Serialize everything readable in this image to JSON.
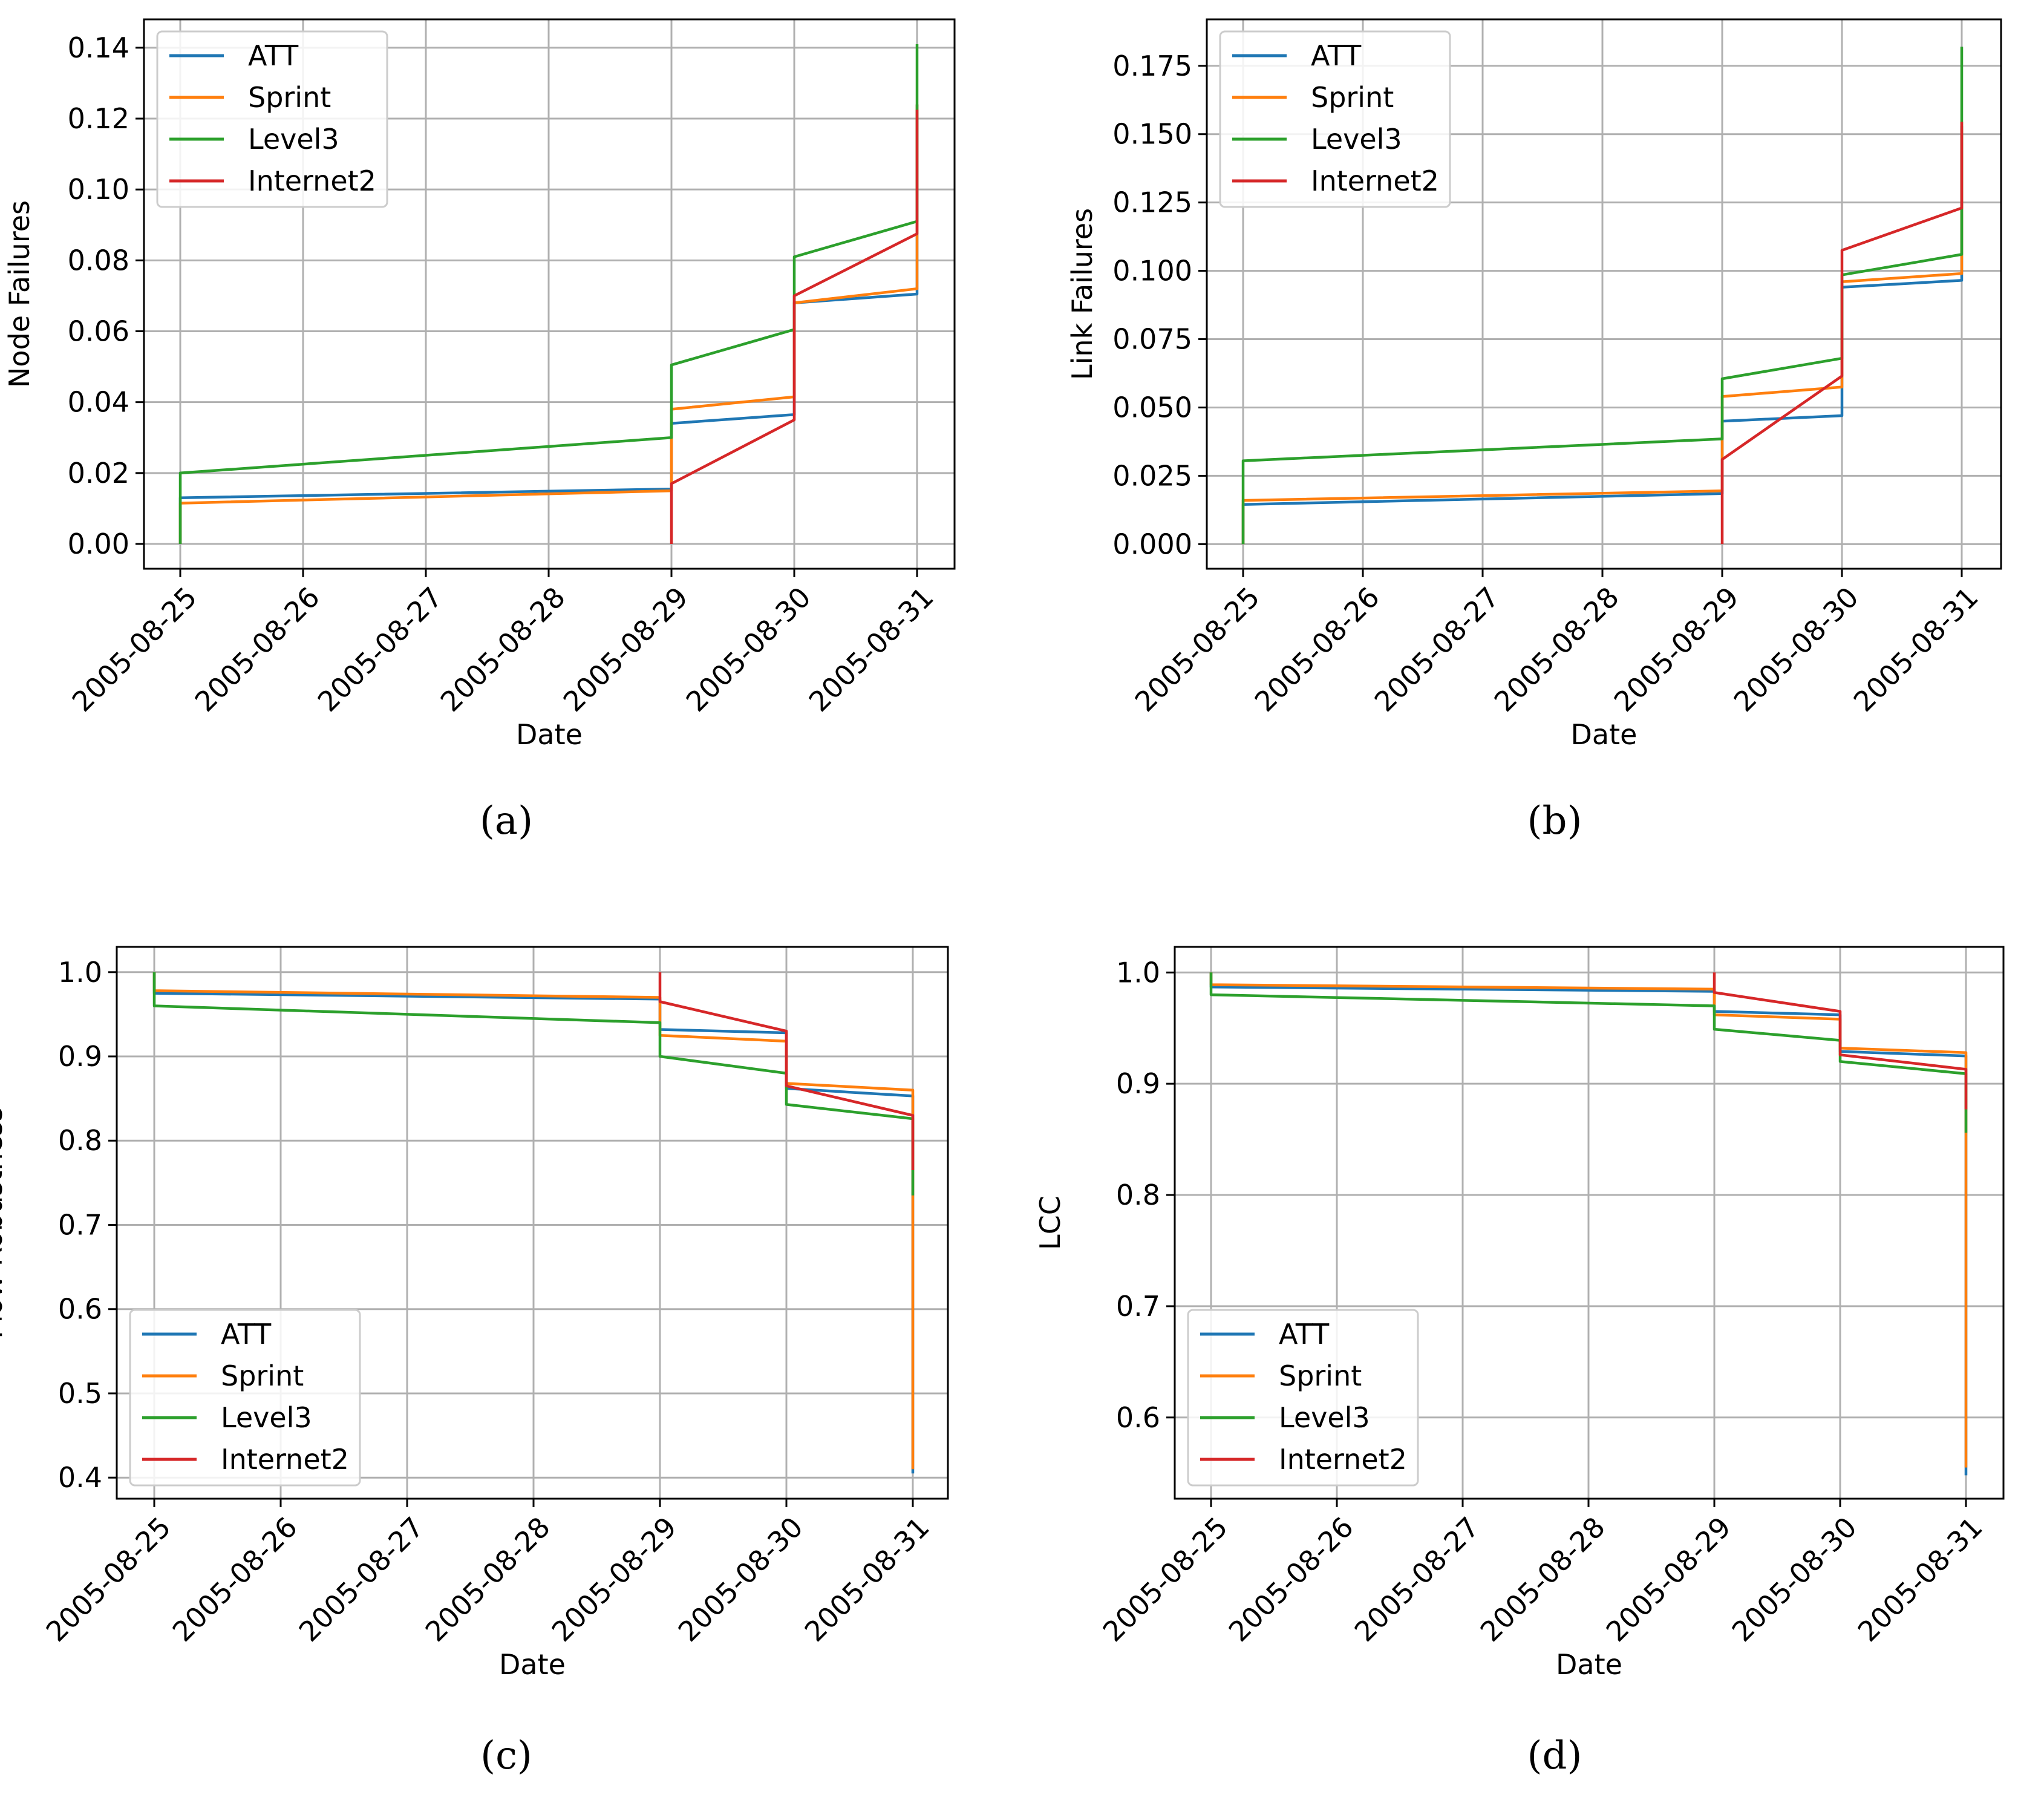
{
  "figure": {
    "captions": [
      "(a)",
      "(b)",
      "(c)",
      "(d)"
    ]
  },
  "colors": {
    "ATT": "#1f77b4",
    "Sprint": "#ff7f0e",
    "Level3": "#2ca02c",
    "Internet2": "#d62728",
    "grid": "#b0b0b0",
    "axis": "#000000"
  },
  "chart_data": [
    {
      "id": "a",
      "type": "line",
      "xlabel": "Date",
      "ylabel": "Node Failures",
      "categories": [
        "2005-08-25",
        "2005-08-26",
        "2005-08-27",
        "2005-08-28",
        "2005-08-29",
        "2005-08-30",
        "2005-08-31"
      ],
      "ylim": [
        -0.007,
        0.148
      ],
      "yticks": [
        "0.00",
        "0.02",
        "0.04",
        "0.06",
        "0.08",
        "0.10",
        "0.12",
        "0.14"
      ],
      "yticks_values": [
        0,
        0.02,
        0.04,
        0.06,
        0.08,
        0.1,
        0.12,
        0.14
      ],
      "legend": {
        "location": "upper-left",
        "entries": [
          "ATT",
          "Sprint",
          "Level3",
          "Internet2"
        ]
      },
      "series": [
        {
          "name": "ATT",
          "points": [
            [
              0,
              0
            ],
            [
              0,
              0.013
            ],
            [
              4,
              0.0155
            ],
            [
              4,
              0.034
            ],
            [
              5,
              0.0365
            ],
            [
              5,
              0.068
            ],
            [
              6,
              0.0705
            ],
            [
              6,
              0.124
            ]
          ]
        },
        {
          "name": "Sprint",
          "points": [
            [
              0,
              0
            ],
            [
              0,
              0.0115
            ],
            [
              4,
              0.015
            ],
            [
              4,
              0.038
            ],
            [
              5,
              0.0415
            ],
            [
              5,
              0.068
            ],
            [
              6,
              0.072
            ],
            [
              6,
              0.124
            ]
          ]
        },
        {
          "name": "Level3",
          "points": [
            [
              0,
              0
            ],
            [
              0,
              0.02
            ],
            [
              4,
              0.03
            ],
            [
              4,
              0.0505
            ],
            [
              5,
              0.0605
            ],
            [
              5,
              0.081
            ],
            [
              6,
              0.091
            ],
            [
              6,
              0.141
            ]
          ]
        },
        {
          "name": "Internet2",
          "points": [
            [
              4,
              0
            ],
            [
              4,
              0.017
            ],
            [
              5,
              0.035
            ],
            [
              5,
              0.07
            ],
            [
              6,
              0.0875
            ],
            [
              6,
              0.1225
            ]
          ]
        }
      ]
    },
    {
      "id": "b",
      "type": "line",
      "xlabel": "Date",
      "ylabel": "Link Failures",
      "categories": [
        "2005-08-25",
        "2005-08-26",
        "2005-08-27",
        "2005-08-28",
        "2005-08-29",
        "2005-08-30",
        "2005-08-31"
      ],
      "ylim": [
        -0.009,
        0.192
      ],
      "yticks": [
        "0.000",
        "0.025",
        "0.050",
        "0.075",
        "0.100",
        "0.125",
        "0.150",
        "0.175"
      ],
      "yticks_values": [
        0,
        0.025,
        0.05,
        0.075,
        0.1,
        0.125,
        0.15,
        0.175
      ],
      "legend": {
        "location": "upper-left",
        "entries": [
          "ATT",
          "Sprint",
          "Level3",
          "Internet2"
        ]
      },
      "series": [
        {
          "name": "ATT",
          "points": [
            [
              0,
              0
            ],
            [
              0,
              0.0145
            ],
            [
              4,
              0.0185
            ],
            [
              4,
              0.045
            ],
            [
              5,
              0.047
            ],
            [
              5,
              0.094
            ],
            [
              6,
              0.0965
            ],
            [
              6,
              0.153
            ]
          ]
        },
        {
          "name": "Sprint",
          "points": [
            [
              0,
              0
            ],
            [
              0,
              0.016
            ],
            [
              4,
              0.0195
            ],
            [
              4,
              0.054
            ],
            [
              5,
              0.0575
            ],
            [
              5,
              0.096
            ],
            [
              6,
              0.099
            ],
            [
              6,
              0.152
            ]
          ]
        },
        {
          "name": "Level3",
          "points": [
            [
              0,
              0
            ],
            [
              0,
              0.0305
            ],
            [
              4,
              0.0385
            ],
            [
              4,
              0.0605
            ],
            [
              5,
              0.068
            ],
            [
              5,
              0.0985
            ],
            [
              6,
              0.106
            ],
            [
              6,
              0.182
            ]
          ]
        },
        {
          "name": "Internet2",
          "points": [
            [
              4,
              0
            ],
            [
              4,
              0.031
            ],
            [
              5,
              0.0615
            ],
            [
              5,
              0.1075
            ],
            [
              6,
              0.123
            ],
            [
              6,
              0.1545
            ]
          ]
        }
      ]
    },
    {
      "id": "c",
      "type": "line",
      "xlabel": "Date",
      "ylabel": "Flow Robustness",
      "categories": [
        "2005-08-25",
        "2005-08-26",
        "2005-08-27",
        "2005-08-28",
        "2005-08-29",
        "2005-08-30",
        "2005-08-31"
      ],
      "ylim": [
        0.375,
        1.03
      ],
      "yticks": [
        "0.4",
        "0.5",
        "0.6",
        "0.7",
        "0.8",
        "0.9",
        "1.0"
      ],
      "yticks_values": [
        0.4,
        0.5,
        0.6,
        0.7,
        0.8,
        0.9,
        1.0
      ],
      "legend": {
        "location": "lower-left",
        "entries": [
          "ATT",
          "Sprint",
          "Level3",
          "Internet2"
        ]
      },
      "series": [
        {
          "name": "ATT",
          "points": [
            [
              0,
              1.0
            ],
            [
              0,
              0.975
            ],
            [
              4,
              0.968
            ],
            [
              4,
              0.932
            ],
            [
              5,
              0.928
            ],
            [
              5,
              0.862
            ],
            [
              6,
              0.853
            ],
            [
              6,
              0.405
            ]
          ]
        },
        {
          "name": "Sprint",
          "points": [
            [
              0,
              1.0
            ],
            [
              0,
              0.978
            ],
            [
              4,
              0.97
            ],
            [
              4,
              0.925
            ],
            [
              5,
              0.918
            ],
            [
              5,
              0.868
            ],
            [
              6,
              0.86
            ],
            [
              6,
              0.41
            ]
          ]
        },
        {
          "name": "Level3",
          "points": [
            [
              0,
              1.0
            ],
            [
              0,
              0.96
            ],
            [
              4,
              0.94
            ],
            [
              4,
              0.9
            ],
            [
              5,
              0.88
            ],
            [
              5,
              0.843
            ],
            [
              6,
              0.826
            ],
            [
              6,
              0.735
            ]
          ]
        },
        {
          "name": "Internet2",
          "points": [
            [
              4,
              1.0
            ],
            [
              4,
              0.965
            ],
            [
              5,
              0.93
            ],
            [
              5,
              0.865
            ],
            [
              6,
              0.83
            ],
            [
              6,
              0.765
            ]
          ]
        }
      ]
    },
    {
      "id": "d",
      "type": "line",
      "xlabel": "Date",
      "ylabel": "LCC",
      "categories": [
        "2005-08-25",
        "2005-08-26",
        "2005-08-27",
        "2005-08-28",
        "2005-08-29",
        "2005-08-30",
        "2005-08-31"
      ],
      "ylim": [
        0.527,
        1.023
      ],
      "yticks": [
        "0.6",
        "0.7",
        "0.8",
        "0.9",
        "1.0"
      ],
      "yticks_values": [
        0.6,
        0.7,
        0.8,
        0.9,
        1.0
      ],
      "legend": {
        "location": "lower-left",
        "entries": [
          "ATT",
          "Sprint",
          "Level3",
          "Internet2"
        ]
      },
      "series": [
        {
          "name": "ATT",
          "points": [
            [
              0,
              1.0
            ],
            [
              0,
              0.987
            ],
            [
              4,
              0.983
            ],
            [
              4,
              0.965
            ],
            [
              5,
              0.962
            ],
            [
              5,
              0.929
            ],
            [
              6,
              0.925
            ],
            [
              6,
              0.548
            ]
          ]
        },
        {
          "name": "Sprint",
          "points": [
            [
              0,
              1.0
            ],
            [
              0,
              0.989
            ],
            [
              4,
              0.985
            ],
            [
              4,
              0.962
            ],
            [
              5,
              0.958
            ],
            [
              5,
              0.932
            ],
            [
              6,
              0.928
            ],
            [
              6,
              0.555
            ]
          ]
        },
        {
          "name": "Level3",
          "points": [
            [
              0,
              1.0
            ],
            [
              0,
              0.98
            ],
            [
              4,
              0.97
            ],
            [
              4,
              0.949
            ],
            [
              5,
              0.939
            ],
            [
              5,
              0.92
            ],
            [
              6,
              0.909
            ],
            [
              6,
              0.856
            ]
          ]
        },
        {
          "name": "Internet2",
          "points": [
            [
              4,
              1.0
            ],
            [
              4,
              0.982
            ],
            [
              5,
              0.965
            ],
            [
              5,
              0.926
            ],
            [
              6,
              0.913
            ],
            [
              6,
              0.877
            ]
          ]
        }
      ]
    }
  ]
}
